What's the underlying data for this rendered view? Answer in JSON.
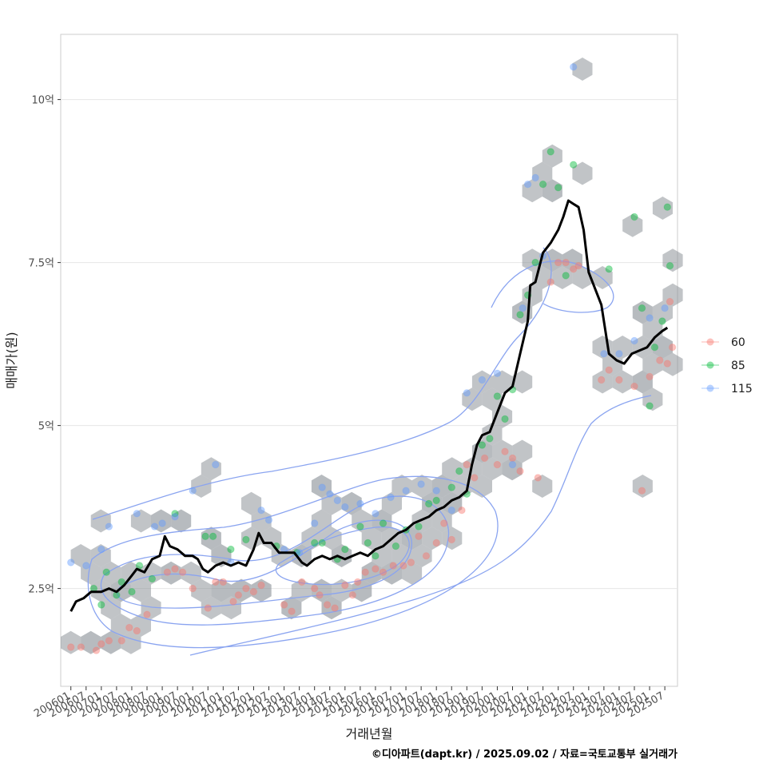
{
  "chart_data": {
    "type": "line",
    "xlabel": "거래년월",
    "ylabel": "매매가(원)",
    "caption": "©디아파트(dapt.kr) / 2025.09.02 / 자료=국토교통부 실거래가",
    "x_ticks": [
      "200601",
      "200607",
      "200701",
      "200707",
      "200801",
      "200807",
      "200901",
      "200907",
      "201001",
      "201007",
      "201101",
      "201107",
      "201201",
      "201207",
      "201301",
      "201307",
      "201401",
      "201407",
      "201501",
      "201507",
      "201601",
      "201607",
      "201701",
      "201707",
      "201801",
      "201807",
      "201901",
      "201907",
      "202001",
      "202007",
      "202101",
      "202107",
      "202201",
      "202207",
      "202301",
      "202307",
      "202401",
      "202407",
      "202501",
      "202507"
    ],
    "y_ticks": [
      {
        "value": 25000,
        "label": "2.5억"
      },
      {
        "value": 50000,
        "label": "5억"
      },
      {
        "value": 75000,
        "label": "7.5억"
      },
      {
        "value": 100000,
        "label": "10억"
      }
    ],
    "xlim": [
      "2005-09",
      "2025-12"
    ],
    "ylim": [
      10000,
      110000
    ],
    "grid": true,
    "legend_position": "right",
    "legend": [
      {
        "label": "60",
        "color": "#F8766D"
      },
      {
        "label": "85",
        "color": "#00BA38"
      },
      {
        "label": "115",
        "color": "#619CFF"
      }
    ],
    "hexbin_color": "#8a9096",
    "contour_color": "#8aa4f0",
    "trend_line": {
      "color": "#000000",
      "points": [
        [
          "2006-01",
          21500
        ],
        [
          "2006-03",
          23000
        ],
        [
          "2006-06",
          23500
        ],
        [
          "2006-09",
          24500
        ],
        [
          "2007-01",
          24500
        ],
        [
          "2007-04",
          25000
        ],
        [
          "2007-07",
          24500
        ],
        [
          "2007-10",
          25500
        ],
        [
          "2008-01",
          27000
        ],
        [
          "2008-03",
          28000
        ],
        [
          "2008-06",
          27500
        ],
        [
          "2008-09",
          29500
        ],
        [
          "2008-12",
          30000
        ],
        [
          "2009-02",
          33000
        ],
        [
          "2009-04",
          31500
        ],
        [
          "2009-07",
          31000
        ],
        [
          "2009-10",
          30000
        ],
        [
          "2010-01",
          30000
        ],
        [
          "2010-03",
          29500
        ],
        [
          "2010-05",
          28000
        ],
        [
          "2010-07",
          27500
        ],
        [
          "2010-10",
          28500
        ],
        [
          "2011-01",
          29000
        ],
        [
          "2011-04",
          28500
        ],
        [
          "2011-07",
          29000
        ],
        [
          "2011-10",
          28500
        ],
        [
          "2012-01",
          31000
        ],
        [
          "2012-03",
          33500
        ],
        [
          "2012-05",
          32000
        ],
        [
          "2012-08",
          32000
        ],
        [
          "2012-11",
          30500
        ],
        [
          "2013-02",
          30500
        ],
        [
          "2013-05",
          30500
        ],
        [
          "2013-08",
          29000
        ],
        [
          "2013-10",
          28500
        ],
        [
          "2014-01",
          29500
        ],
        [
          "2014-04",
          30000
        ],
        [
          "2014-07",
          29500
        ],
        [
          "2014-10",
          30000
        ],
        [
          "2015-01",
          29500
        ],
        [
          "2015-04",
          30000
        ],
        [
          "2015-07",
          30500
        ],
        [
          "2015-10",
          30000
        ],
        [
          "2016-01",
          31000
        ],
        [
          "2016-04",
          31500
        ],
        [
          "2016-07",
          32500
        ],
        [
          "2016-10",
          33500
        ],
        [
          "2017-01",
          34000
        ],
        [
          "2017-04",
          35000
        ],
        [
          "2017-07",
          35500
        ],
        [
          "2017-10",
          36000
        ],
        [
          "2018-01",
          37000
        ],
        [
          "2018-04",
          37500
        ],
        [
          "2018-07",
          38500
        ],
        [
          "2018-10",
          39000
        ],
        [
          "2019-01",
          40000
        ],
        [
          "2019-03",
          44000
        ],
        [
          "2019-05",
          47000
        ],
        [
          "2019-07",
          48500
        ],
        [
          "2019-10",
          49000
        ],
        [
          "2020-01",
          52000
        ],
        [
          "2020-04",
          55000
        ],
        [
          "2020-07",
          56000
        ],
        [
          "2020-10",
          61000
        ],
        [
          "2021-01",
          66000
        ],
        [
          "2021-02",
          71500
        ],
        [
          "2021-04",
          72000
        ],
        [
          "2021-07",
          76500
        ],
        [
          "2021-10",
          78000
        ],
        [
          "2022-01",
          80000
        ],
        [
          "2022-03",
          82000
        ],
        [
          "2022-05",
          84500
        ],
        [
          "2022-07",
          84000
        ],
        [
          "2022-09",
          83500
        ],
        [
          "2022-11",
          80000
        ],
        [
          "2023-01",
          73500
        ],
        [
          "2023-03",
          71500
        ],
        [
          "2023-06",
          68500
        ],
        [
          "2023-09",
          61000
        ],
        [
          "2023-12",
          60000
        ],
        [
          "2024-03",
          59500
        ],
        [
          "2024-06",
          61000
        ],
        [
          "2024-09",
          61500
        ],
        [
          "2024-12",
          62000
        ],
        [
          "2025-03",
          63500
        ],
        [
          "2025-06",
          64500
        ],
        [
          "2025-08",
          65000
        ]
      ]
    },
    "series": [
      {
        "name": "60",
        "points": [
          [
            "2006-01",
            16000
          ],
          [
            "2006-05",
            16000
          ],
          [
            "2006-11",
            15500
          ],
          [
            "2007-01",
            16500
          ],
          [
            "2007-04",
            17000
          ],
          [
            "2007-09",
            17000
          ],
          [
            "2007-12",
            19000
          ],
          [
            "2008-03",
            18500
          ],
          [
            "2008-07",
            21000
          ],
          [
            "2009-03",
            27500
          ],
          [
            "2009-06",
            28000
          ],
          [
            "2009-09",
            27500
          ],
          [
            "2010-01",
            25000
          ],
          [
            "2010-07",
            22000
          ],
          [
            "2010-10",
            26000
          ],
          [
            "2011-01",
            26000
          ],
          [
            "2011-05",
            23000
          ],
          [
            "2011-07",
            24000
          ],
          [
            "2011-10",
            25000
          ],
          [
            "2012-01",
            24500
          ],
          [
            "2012-04",
            25500
          ],
          [
            "2013-01",
            22500
          ],
          [
            "2013-04",
            21500
          ],
          [
            "2013-08",
            26000
          ],
          [
            "2014-01",
            25000
          ],
          [
            "2014-03",
            24000
          ],
          [
            "2014-06",
            22500
          ],
          [
            "2014-09",
            22000
          ],
          [
            "2015-01",
            25500
          ],
          [
            "2015-04",
            24000
          ],
          [
            "2015-06",
            26000
          ],
          [
            "2015-09",
            27500
          ],
          [
            "2016-01",
            28000
          ],
          [
            "2016-04",
            27500
          ],
          [
            "2016-08",
            28500
          ],
          [
            "2016-12",
            28500
          ],
          [
            "2017-03",
            29000
          ],
          [
            "2017-06",
            33000
          ],
          [
            "2017-09",
            30000
          ],
          [
            "2018-01",
            32000
          ],
          [
            "2018-04",
            35000
          ],
          [
            "2018-07",
            32500
          ],
          [
            "2018-11",
            37000
          ],
          [
            "2019-01",
            44000
          ],
          [
            "2019-04",
            42000
          ],
          [
            "2019-08",
            45000
          ],
          [
            "2020-01",
            44000
          ],
          [
            "2020-04",
            46000
          ],
          [
            "2020-07",
            45000
          ],
          [
            "2020-10",
            43000
          ],
          [
            "2021-05",
            42000
          ],
          [
            "2021-10",
            72000
          ],
          [
            "2022-01",
            75000
          ],
          [
            "2022-04",
            75000
          ],
          [
            "2022-07",
            74000
          ],
          [
            "2022-09",
            74500
          ],
          [
            "2023-06",
            57000
          ],
          [
            "2023-09",
            58500
          ],
          [
            "2024-01",
            57000
          ],
          [
            "2024-07",
            56000
          ],
          [
            "2024-10",
            40000
          ],
          [
            "2025-01",
            57500
          ],
          [
            "2025-05",
            60000
          ],
          [
            "2025-08",
            59500
          ],
          [
            "2025-09",
            69000
          ],
          [
            "2025-10",
            62000
          ]
        ]
      },
      {
        "name": "85",
        "points": [
          [
            "2006-10",
            25000
          ],
          [
            "2007-01",
            22500
          ],
          [
            "2007-03",
            27500
          ],
          [
            "2007-07",
            24000
          ],
          [
            "2007-09",
            26000
          ],
          [
            "2008-01",
            24500
          ],
          [
            "2008-04",
            28500
          ],
          [
            "2008-09",
            26500
          ],
          [
            "2009-06",
            36500
          ],
          [
            "2010-06",
            33000
          ],
          [
            "2010-09",
            33000
          ],
          [
            "2011-04",
            31000
          ],
          [
            "2011-10",
            32500
          ],
          [
            "2012-10",
            31500
          ],
          [
            "2013-06",
            30500
          ],
          [
            "2014-01",
            32000
          ],
          [
            "2014-04",
            32000
          ],
          [
            "2014-10",
            29500
          ],
          [
            "2015-01",
            31000
          ],
          [
            "2015-07",
            34500
          ],
          [
            "2015-10",
            32000
          ],
          [
            "2016-01",
            30000
          ],
          [
            "2016-04",
            35000
          ],
          [
            "2016-09",
            31500
          ],
          [
            "2017-01",
            34000
          ],
          [
            "2017-06",
            34500
          ],
          [
            "2017-10",
            38000
          ],
          [
            "2018-01",
            38500
          ],
          [
            "2018-07",
            40500
          ],
          [
            "2018-10",
            43000
          ],
          [
            "2019-01",
            39500
          ],
          [
            "2019-07",
            47000
          ],
          [
            "2019-10",
            48000
          ],
          [
            "2020-01",
            54500
          ],
          [
            "2020-04",
            51000
          ],
          [
            "2020-07",
            55500
          ],
          [
            "2020-10",
            67000
          ],
          [
            "2021-01",
            70000
          ],
          [
            "2021-04",
            75000
          ],
          [
            "2021-07",
            87000
          ],
          [
            "2021-10",
            92000
          ],
          [
            "2022-01",
            86500
          ],
          [
            "2022-04",
            73000
          ],
          [
            "2022-07",
            90000
          ],
          [
            "2023-09",
            74000
          ],
          [
            "2024-07",
            82000
          ],
          [
            "2024-10",
            68000
          ],
          [
            "2025-01",
            53000
          ],
          [
            "2025-03",
            62000
          ],
          [
            "2025-06",
            66000
          ],
          [
            "2025-08",
            83500
          ],
          [
            "2025-09",
            74500
          ]
        ]
      },
      {
        "name": "115",
        "points": [
          [
            "2006-01",
            29000
          ],
          [
            "2006-07",
            28500
          ],
          [
            "2007-01",
            31000
          ],
          [
            "2007-04",
            34500
          ],
          [
            "2008-03",
            36500
          ],
          [
            "2008-10",
            34500
          ],
          [
            "2009-01",
            35000
          ],
          [
            "2009-06",
            36000
          ],
          [
            "2010-01",
            40000
          ],
          [
            "2010-10",
            44000
          ],
          [
            "2011-04",
            29000
          ],
          [
            "2012-04",
            37000
          ],
          [
            "2012-07",
            35500
          ],
          [
            "2013-01",
            31000
          ],
          [
            "2013-07",
            30500
          ],
          [
            "2014-01",
            35000
          ],
          [
            "2014-04",
            40500
          ],
          [
            "2014-07",
            39500
          ],
          [
            "2014-10",
            38500
          ],
          [
            "2015-01",
            37500
          ],
          [
            "2015-07",
            38000
          ],
          [
            "2016-01",
            36500
          ],
          [
            "2016-07",
            39000
          ],
          [
            "2017-01",
            40000
          ],
          [
            "2017-07",
            41000
          ],
          [
            "2018-01",
            40000
          ],
          [
            "2018-07",
            37000
          ],
          [
            "2019-01",
            55000
          ],
          [
            "2019-07",
            57000
          ],
          [
            "2020-01",
            58000
          ],
          [
            "2020-07",
            44000
          ],
          [
            "2020-11",
            68000
          ],
          [
            "2021-01",
            87000
          ],
          [
            "2021-04",
            88000
          ],
          [
            "2021-07",
            76000
          ],
          [
            "2022-07",
            105000
          ],
          [
            "2023-07",
            61000
          ],
          [
            "2024-01",
            61000
          ],
          [
            "2024-07",
            63000
          ],
          [
            "2025-01",
            66500
          ],
          [
            "2025-07",
            68000
          ]
        ]
      }
    ]
  }
}
